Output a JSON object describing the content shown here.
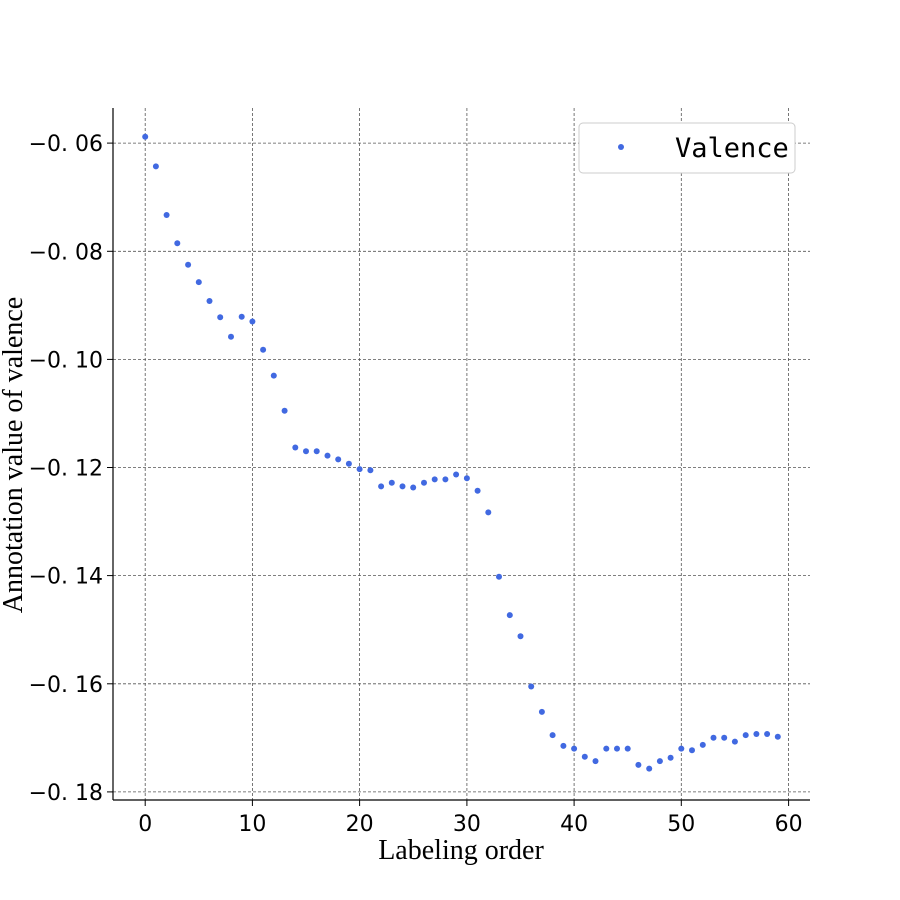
{
  "chart_data": {
    "type": "scatter",
    "xlabel": "Labeling order",
    "ylabel": "Annotation value of valence",
    "xlim": [
      -3,
      62
    ],
    "ylim": [
      -0.1815,
      -0.0535
    ],
    "xticks": [
      0,
      10,
      20,
      30,
      40,
      50,
      60
    ],
    "yticks": [
      -0.06,
      -0.08,
      -0.1,
      -0.12,
      -0.14,
      -0.16,
      -0.18
    ],
    "xtick_labels": [
      "0",
      "10",
      "20",
      "30",
      "40",
      "50",
      "60"
    ],
    "ytick_labels": [
      "−0. 06",
      "−0. 08",
      "−0. 10",
      "−0. 12",
      "−0. 14",
      "−0. 16",
      "−0. 18"
    ],
    "grid": true,
    "legend_position": "top-right",
    "series": [
      {
        "name": "Valence",
        "color": "#4169e1",
        "x": [
          0,
          1,
          2,
          3,
          4,
          5,
          6,
          7,
          8,
          9,
          10,
          11,
          12,
          13,
          14,
          15,
          16,
          17,
          18,
          19,
          20,
          21,
          22,
          23,
          24,
          25,
          26,
          27,
          28,
          29,
          30,
          31,
          32,
          33,
          34,
          35,
          36,
          37,
          38,
          39,
          40,
          41,
          42,
          43,
          44,
          45,
          46,
          47,
          48,
          49,
          50,
          51,
          52,
          53,
          54,
          55,
          56,
          57,
          58,
          59
        ],
        "y": [
          -0.0588,
          -0.0643,
          -0.0733,
          -0.0785,
          -0.0825,
          -0.0857,
          -0.0892,
          -0.0922,
          -0.0958,
          -0.0921,
          -0.093,
          -0.0982,
          -0.103,
          -0.1095,
          -0.1163,
          -0.117,
          -0.117,
          -0.1178,
          -0.1185,
          -0.1193,
          -0.1203,
          -0.1205,
          -0.1235,
          -0.1228,
          -0.1235,
          -0.1237,
          -0.1228,
          -0.1222,
          -0.1222,
          -0.1213,
          -0.122,
          -0.1243,
          -0.1283,
          -0.1402,
          -0.1473,
          -0.1512,
          -0.1605,
          -0.1652,
          -0.1695,
          -0.1715,
          -0.172,
          -0.1735,
          -0.1743,
          -0.172,
          -0.172,
          -0.172,
          -0.175,
          -0.1757,
          -0.1743,
          -0.1737,
          -0.172,
          -0.1723,
          -0.1713,
          -0.17,
          -0.17,
          -0.1707,
          -0.1695,
          -0.1693,
          -0.1693,
          -0.1698
        ]
      }
    ]
  }
}
